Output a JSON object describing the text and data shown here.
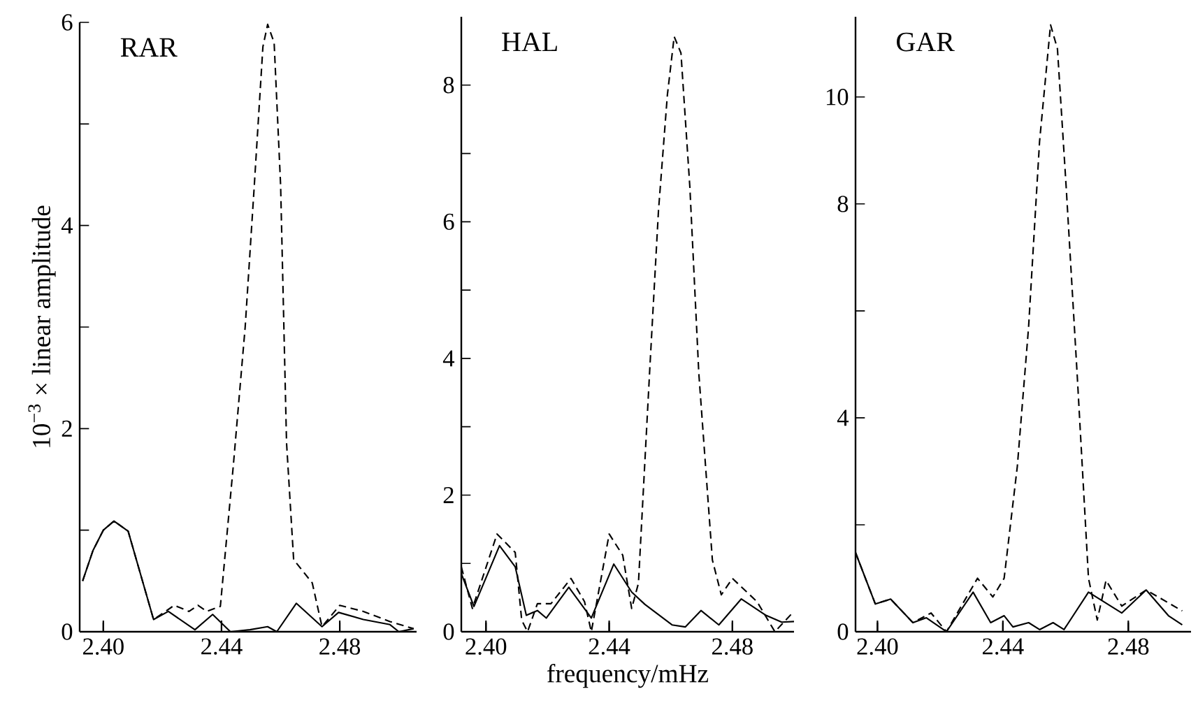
{
  "chart_data": [
    {
      "type": "line",
      "title": "RAR",
      "ylabel": "10$^{−3}$ × linear amplitude",
      "xlim": [
        2.392,
        2.506
      ],
      "ylim": [
        0,
        6
      ],
      "xticks": [
        {
          "value": 2.4,
          "label": "2.40"
        },
        {
          "value": 2.44,
          "label": "2.44"
        },
        {
          "value": 2.48,
          "label": "2.48"
        }
      ],
      "yticks": [
        0,
        {
          "value": 1,
          "label": null
        },
        2,
        {
          "value": 3,
          "label": null
        },
        4,
        {
          "value": 5,
          "label": null
        },
        6
      ],
      "series": [
        {
          "color": "#000000",
          "line_style": "solid",
          "x": [
            2.393,
            2.3965,
            2.4,
            2.4036,
            2.4084,
            2.417,
            2.422,
            2.431,
            2.437,
            2.443,
            2.4496,
            2.4556,
            2.4587,
            2.4653,
            2.474,
            2.4796,
            2.488,
            2.497,
            2.5,
            2.505
          ],
          "values": [
            0.5,
            0.8,
            1.0,
            1.09,
            0.99,
            0.12,
            0.2,
            0.02,
            0.17,
            0,
            0.02,
            0.05,
            0,
            0.28,
            0.05,
            0.19,
            0.12,
            0.07,
            0,
            0.03
          ]
        },
        {
          "color": "#000000",
          "line_style": "dashed",
          "x": [
            2.393,
            2.3965,
            2.4,
            2.4036,
            2.4084,
            2.417,
            2.424,
            2.429,
            2.432,
            2.435,
            2.4396,
            2.444,
            2.448,
            2.4511,
            2.454,
            2.4556,
            2.4578,
            2.46,
            2.462,
            2.4644,
            2.4707,
            2.474,
            2.48,
            2.488,
            2.497,
            2.505
          ],
          "values": [
            0.5,
            0.8,
            1.0,
            1.09,
            0.99,
            0.12,
            0.26,
            0.2,
            0.26,
            0.2,
            0.25,
            1.64,
            3.0,
            4.4,
            5.76,
            5.98,
            5.8,
            4.39,
            1.86,
            0.71,
            0.48,
            0.05,
            0.26,
            0.2,
            0.1,
            0.03
          ]
        }
      ]
    },
    {
      "type": "line",
      "title": "HAL",
      "xlabel": "frequency/mHz",
      "xlim": [
        2.392,
        2.5
      ],
      "ylim": [
        0,
        9
      ],
      "xticks": [
        {
          "value": 2.4,
          "label": "2.40"
        },
        {
          "value": 2.44,
          "label": "2.44"
        },
        {
          "value": 2.48,
          "label": "2.48"
        }
      ],
      "yticks": [
        0,
        {
          "value": 1,
          "label": null
        },
        2,
        {
          "value": 3,
          "label": null
        },
        4,
        {
          "value": 5,
          "label": null
        },
        6,
        {
          "value": 7,
          "label": null
        },
        8
      ],
      "series": [
        {
          "color": "#000000",
          "line_style": "solid",
          "x": [
            2.392,
            2.3961,
            2.4044,
            2.4095,
            2.4131,
            2.4167,
            2.4196,
            2.4269,
            2.4342,
            2.4415,
            2.4473,
            2.4516,
            2.4604,
            2.4647,
            2.4698,
            2.4756,
            2.4829,
            2.4909,
            2.496,
            2.5
          ],
          "values": [
            0.85,
            0.37,
            1.26,
            0.95,
            0.24,
            0.31,
            0.2,
            0.65,
            0.2,
            0.99,
            0.58,
            0.4,
            0.1,
            0.07,
            0.31,
            0.1,
            0.48,
            0.24,
            0.14,
            0.15
          ]
        },
        {
          "color": "#000000",
          "line_style": "dashed",
          "x": [
            2.392,
            2.3956,
            2.4036,
            2.4095,
            2.4116,
            2.4135,
            2.4167,
            2.4211,
            2.4276,
            2.432,
            2.4342,
            2.44,
            2.4444,
            2.4473,
            2.4495,
            2.4531,
            2.456,
            2.4589,
            2.4611,
            2.4633,
            2.4662,
            2.4691,
            2.4735,
            2.4764,
            2.48,
            2.488,
            2.4938,
            2.5
          ],
          "values": [
            0.95,
            0.34,
            1.43,
            1.16,
            0.17,
            0,
            0.41,
            0.41,
            0.78,
            0.44,
            0,
            1.43,
            1.12,
            0.34,
            0.71,
            3.78,
            6.16,
            7.86,
            8.71,
            8.47,
            6.5,
            3.78,
            1.05,
            0.54,
            0.78,
            0.44,
            0,
            0.3
          ]
        }
      ]
    },
    {
      "type": "line",
      "title": "GAR",
      "xlim": [
        2.393,
        2.5
      ],
      "ylim": [
        0,
        11.5
      ],
      "xticks": [
        {
          "value": 2.4,
          "label": "2.40"
        },
        {
          "value": 2.44,
          "label": "2.44"
        },
        {
          "value": 2.48,
          "label": "2.48"
        }
      ],
      "yticks": [
        0,
        {
          "value": 2,
          "label": null
        },
        4,
        {
          "value": 6,
          "label": null
        },
        8,
        10
      ],
      "series": [
        {
          "color": "#000000",
          "line_style": "solid",
          "x": [
            2.393,
            2.3993,
            2.4042,
            2.4113,
            2.4156,
            2.422,
            2.4305,
            2.4361,
            2.4404,
            2.4432,
            2.4482,
            2.4517,
            2.456,
            2.4595,
            2.4673,
            2.4779,
            2.4857,
            2.4928,
            2.4972
          ],
          "values": [
            1.48,
            0.52,
            0.61,
            0.17,
            0.26,
            0,
            0.74,
            0.17,
            0.3,
            0.09,
            0.17,
            0.04,
            0.17,
            0.04,
            0.74,
            0.35,
            0.78,
            0.3,
            0.13
          ]
        },
        {
          "color": "#000000",
          "line_style": "dashed",
          "x": [
            2.393,
            2.3993,
            2.4042,
            2.4113,
            2.4171,
            2.422,
            2.4319,
            2.4368,
            2.4404,
            2.4446,
            2.4482,
            2.4517,
            2.4552,
            2.4574,
            2.4602,
            2.4637,
            2.4673,
            2.4701,
            2.4729,
            2.4779,
            2.4857,
            2.4972
          ],
          "values": [
            1.48,
            0.52,
            0.61,
            0.17,
            0.35,
            0,
            1.0,
            0.65,
            1.0,
            3.09,
            5.7,
            9.17,
            11.35,
            10.9,
            8.3,
            4.8,
            1.0,
            0.22,
            0.96,
            0.48,
            0.78,
            0.39
          ]
        }
      ]
    }
  ]
}
